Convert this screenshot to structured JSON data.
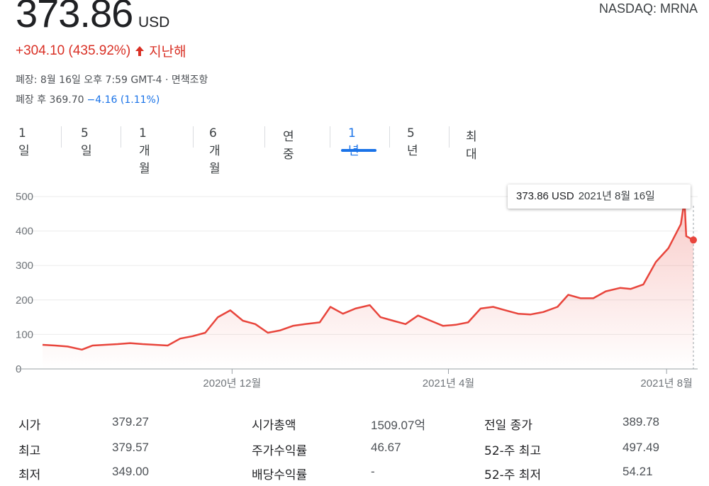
{
  "header": {
    "price": "373.86",
    "currency": "USD",
    "ticker": "NASDAQ: MRNA",
    "change": "+304.10 (435.92%)",
    "change_period": "지난해",
    "closed_line": "폐장: 8월 16일 오후 7:59 GMT-4 · 면책조항",
    "after_hours_label": "폐장 후 369.70",
    "after_hours_change": "−4.16 (1.11%)",
    "colors": {
      "up": "#d93025",
      "down": "#1a73e8",
      "line": "#e8453c"
    }
  },
  "tabs": [
    {
      "label": "1일"
    },
    {
      "label": "5일"
    },
    {
      "label": "1개월"
    },
    {
      "label": "6개월"
    },
    {
      "label": "연중"
    },
    {
      "label": "1년",
      "active": true
    },
    {
      "label": "5년"
    },
    {
      "label": "최대"
    }
  ],
  "tooltip": {
    "price": "373.86 USD",
    "date": "2021년 8월 16일"
  },
  "chart_data": {
    "type": "line",
    "ylim": [
      0,
      500
    ],
    "yticks": [
      "500",
      "400",
      "300",
      "200",
      "100",
      "0"
    ],
    "xtick_labels": [
      "2020년 12월",
      "2021년 4월",
      "2021년 8월"
    ],
    "x": [
      "2020-08-17",
      "2020-08-24",
      "2020-08-31",
      "2020-09-08",
      "2020-09-14",
      "2020-09-21",
      "2020-09-28",
      "2020-10-05",
      "2020-10-12",
      "2020-10-19",
      "2020-10-26",
      "2020-11-02",
      "2020-11-09",
      "2020-11-16",
      "2020-11-23",
      "2020-11-30",
      "2020-12-07",
      "2020-12-14",
      "2020-12-21",
      "2020-12-28",
      "2021-01-04",
      "2021-01-11",
      "2021-01-19",
      "2021-01-25",
      "2021-02-01",
      "2021-02-08",
      "2021-02-16",
      "2021-02-22",
      "2021-03-01",
      "2021-03-08",
      "2021-03-15",
      "2021-03-22",
      "2021-03-29",
      "2021-04-05",
      "2021-04-12",
      "2021-04-19",
      "2021-04-26",
      "2021-05-03",
      "2021-05-10",
      "2021-05-17",
      "2021-05-24",
      "2021-06-01",
      "2021-06-07",
      "2021-06-14",
      "2021-06-21",
      "2021-06-28",
      "2021-07-06",
      "2021-07-12",
      "2021-07-19",
      "2021-07-26",
      "2021-08-02",
      "2021-08-09",
      "2021-08-11",
      "2021-08-12",
      "2021-08-16"
    ],
    "series": [
      {
        "values": [
          70,
          68,
          65,
          56,
          68,
          70,
          72,
          75,
          72,
          70,
          68,
          88,
          95,
          105,
          150,
          170,
          140,
          130,
          105,
          112,
          125,
          130,
          135,
          180,
          160,
          175,
          185,
          150,
          140,
          130,
          155,
          140,
          125,
          128,
          135,
          175,
          180,
          170,
          160,
          158,
          165,
          180,
          215,
          205,
          205,
          225,
          235,
          232,
          245,
          310,
          350,
          420,
          490,
          385,
          373.86
        ]
      }
    ]
  },
  "stats": {
    "col1": [
      {
        "label": "시가",
        "value": "379.27"
      },
      {
        "label": "최고",
        "value": "379.57"
      },
      {
        "label": "최저",
        "value": "349.00"
      }
    ],
    "col2": [
      {
        "label": "시가총액",
        "value": "1509.07억"
      },
      {
        "label": "주가수익률",
        "value": "46.67"
      },
      {
        "label": "배당수익률",
        "value": "-"
      }
    ],
    "col3": [
      {
        "label": "전일 종가",
        "value": "389.78"
      },
      {
        "label": "52-주 최고",
        "value": "497.49"
      },
      {
        "label": "52-주 최저",
        "value": "54.21"
      }
    ]
  }
}
